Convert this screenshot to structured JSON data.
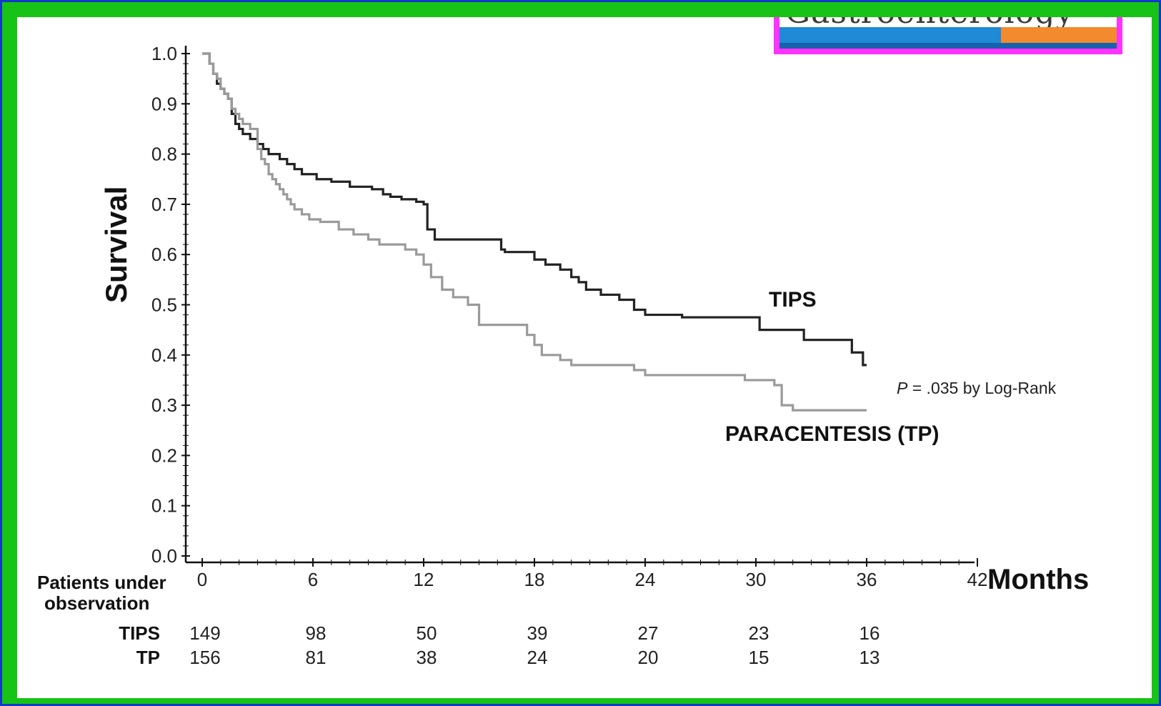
{
  "logo": {
    "text": "Gastroenterology"
  },
  "chart_data": {
    "type": "line",
    "subtype": "kaplan-meier",
    "title": "",
    "xlabel": "Months",
    "ylabel": "Survival",
    "xlim": [
      0,
      42
    ],
    "ylim": [
      0.0,
      1.0
    ],
    "xticks": [
      "0",
      "6",
      "12",
      "18",
      "24",
      "30",
      "36",
      "42"
    ],
    "yticks": [
      "0.0",
      "0.1",
      "0.2",
      "0.3",
      "0.4",
      "0.5",
      "0.6",
      "0.7",
      "0.8",
      "0.9",
      "1.0"
    ],
    "grid": false,
    "series": [
      {
        "name": "TIPS",
        "color": "#222222",
        "x": [
          0,
          0.4,
          0.6,
          0.8,
          1.0,
          1.2,
          1.4,
          1.6,
          1.8,
          2.0,
          2.2,
          2.6,
          3.0,
          3.3,
          3.6,
          3.9,
          4.2,
          4.6,
          5.0,
          5.4,
          5.8,
          6.2,
          7.0,
          8.0,
          9.2,
          9.8,
          10.2,
          10.8,
          11.6,
          12.0,
          12.2,
          12.6,
          14.0,
          16.2,
          16.4,
          17.0,
          18.0,
          18.6,
          19.4,
          20.0,
          20.4,
          20.8,
          21.6,
          22.6,
          23.4,
          24.0,
          26.0,
          28.0,
          30.2,
          32.0,
          32.6,
          34.6,
          35.2,
          35.8,
          36.0
        ],
        "y": [
          1.0,
          0.98,
          0.96,
          0.94,
          0.93,
          0.92,
          0.91,
          0.88,
          0.86,
          0.85,
          0.84,
          0.83,
          0.82,
          0.81,
          0.8,
          0.8,
          0.79,
          0.78,
          0.77,
          0.76,
          0.76,
          0.75,
          0.745,
          0.735,
          0.73,
          0.72,
          0.715,
          0.71,
          0.705,
          0.7,
          0.65,
          0.63,
          0.63,
          0.61,
          0.605,
          0.605,
          0.59,
          0.58,
          0.57,
          0.555,
          0.545,
          0.53,
          0.52,
          0.51,
          0.49,
          0.48,
          0.475,
          0.475,
          0.45,
          0.45,
          0.43,
          0.43,
          0.405,
          0.38,
          0.38
        ]
      },
      {
        "name": "PARACENTESIS (TP)",
        "color": "#9a9a9a",
        "x": [
          0,
          0.4,
          0.6,
          0.8,
          1.0,
          1.2,
          1.4,
          1.6,
          1.8,
          2.0,
          2.2,
          2.6,
          3.0,
          3.2,
          3.4,
          3.6,
          3.8,
          4.0,
          4.2,
          4.4,
          4.6,
          4.8,
          5.0,
          5.4,
          5.8,
          6.4,
          7.4,
          8.2,
          9.0,
          9.6,
          11.0,
          11.6,
          12.0,
          12.4,
          13.0,
          13.6,
          14.4,
          15.0,
          17.0,
          17.6,
          18.0,
          18.4,
          19.4,
          20.0,
          23.4,
          24.0,
          26.0,
          29.4,
          30.0,
          31.0,
          31.4,
          32.0,
          36.0
        ],
        "y": [
          1.0,
          0.98,
          0.96,
          0.95,
          0.93,
          0.92,
          0.91,
          0.89,
          0.88,
          0.87,
          0.86,
          0.85,
          0.81,
          0.79,
          0.78,
          0.76,
          0.75,
          0.74,
          0.73,
          0.72,
          0.71,
          0.7,
          0.69,
          0.68,
          0.67,
          0.665,
          0.65,
          0.64,
          0.63,
          0.62,
          0.61,
          0.6,
          0.58,
          0.555,
          0.53,
          0.515,
          0.5,
          0.46,
          0.46,
          0.44,
          0.42,
          0.4,
          0.39,
          0.38,
          0.37,
          0.36,
          0.36,
          0.35,
          0.35,
          0.34,
          0.3,
          0.29,
          0.29
        ]
      }
    ],
    "annotations": [
      {
        "text": "TIPS",
        "x": 33,
        "y": 0.52
      },
      {
        "text": "PARACENTESIS (TP)",
        "x": 33,
        "y": 0.245
      },
      {
        "text_italic": "P",
        "text": " = .035 by Log-Rank",
        "x": 39.5,
        "y": 0.33
      }
    ],
    "risk_table": {
      "header": [
        "Patients under",
        "observation"
      ],
      "rows": [
        {
          "label": "TIPS",
          "values": [
            "149",
            "98",
            "50",
            "39",
            "27",
            "23",
            "16"
          ]
        },
        {
          "label": "TP",
          "values": [
            "156",
            "81",
            "38",
            "24",
            "20",
            "15",
            "13"
          ]
        }
      ]
    }
  }
}
